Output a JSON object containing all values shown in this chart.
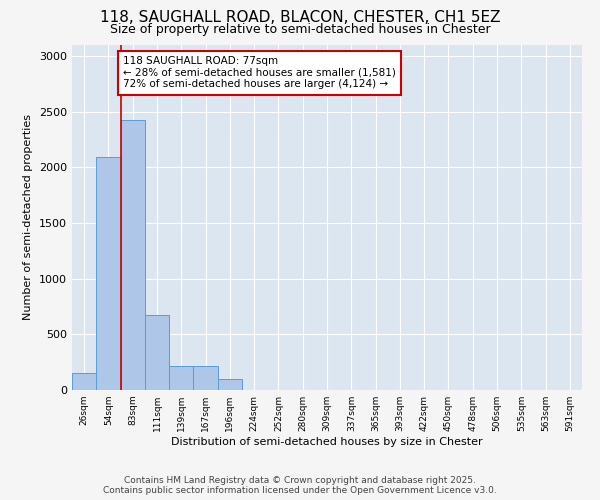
{
  "title_line1": "118, SAUGHALL ROAD, BLACON, CHESTER, CH1 5EZ",
  "title_line2": "Size of property relative to semi-detached houses in Chester",
  "xlabel": "Distribution of semi-detached houses by size in Chester",
  "ylabel": "Number of semi-detached properties",
  "categories": [
    "26sqm",
    "54sqm",
    "83sqm",
    "111sqm",
    "139sqm",
    "167sqm",
    "196sqm",
    "224sqm",
    "252sqm",
    "280sqm",
    "309sqm",
    "337sqm",
    "365sqm",
    "393sqm",
    "422sqm",
    "450sqm",
    "478sqm",
    "506sqm",
    "535sqm",
    "563sqm",
    "591sqm"
  ],
  "values": [
    155,
    2090,
    2430,
    670,
    220,
    220,
    95,
    0,
    0,
    0,
    0,
    0,
    0,
    0,
    0,
    0,
    0,
    0,
    0,
    0,
    0
  ],
  "bar_color": "#aec6e8",
  "bar_edge_color": "#5b9bd5",
  "vline_color": "#cc0000",
  "annotation_text": "118 SAUGHALL ROAD: 77sqm\n← 28% of semi-detached houses are smaller (1,581)\n72% of semi-detached houses are larger (4,124) →",
  "annotation_box_color": "#cc0000",
  "ylim": [
    0,
    3100
  ],
  "yticks": [
    0,
    500,
    1000,
    1500,
    2000,
    2500,
    3000
  ],
  "background_color": "#dce6f0",
  "grid_color": "#ffffff",
  "footer_line1": "Contains HM Land Registry data © Crown copyright and database right 2025.",
  "footer_line2": "Contains public sector information licensed under the Open Government Licence v3.0.",
  "title_fontsize": 11,
  "subtitle_fontsize": 9,
  "annotation_fontsize": 7.5,
  "footer_fontsize": 6.5,
  "fig_background": "#f5f5f5"
}
